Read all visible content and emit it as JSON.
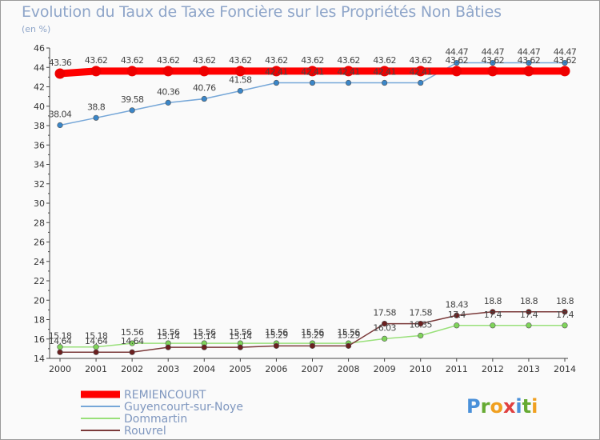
{
  "chart_data": {
    "type": "line",
    "title": "Evolution du Taux de Taxe Foncière sur les Propriétés Non Bâties",
    "subtitle": "(en %)",
    "x": [
      "2000",
      "2001",
      "2002",
      "2003",
      "2004",
      "2005",
      "2006",
      "2007",
      "2008",
      "2009",
      "2010",
      "2011",
      "2012",
      "2013",
      "2014"
    ],
    "ylim": [
      14,
      46
    ],
    "ytick_step": 2,
    "grid": false,
    "legend_position": "bottom-left",
    "series": [
      {
        "name": "REMIENCOURT",
        "color": "#ff0000",
        "values": [
          43.36,
          43.62,
          43.62,
          43.62,
          43.62,
          43.62,
          43.62,
          43.62,
          43.62,
          43.62,
          43.62,
          43.62,
          43.62,
          43.62,
          43.62
        ],
        "labels": [
          "43.36",
          "43.62",
          "43.62",
          "43.62",
          "43.62",
          "43.62",
          "43.62",
          "43.62",
          "43.62",
          "43.62",
          "43.62",
          "43.62",
          "43.62",
          "43.62",
          "43.62"
        ]
      },
      {
        "name": "Guyencourt-sur-Noye",
        "color": "#76a7d8",
        "values": [
          38.04,
          38.8,
          39.58,
          40.36,
          40.76,
          41.58,
          42.41,
          42.41,
          42.41,
          42.41,
          42.41,
          44.47,
          44.47,
          44.47,
          44.47
        ],
        "labels": [
          "38.04",
          "38.8",
          "39.58",
          "40.36",
          "40.76",
          "41.58",
          "42.41",
          "42.41",
          "42.41",
          "42.41",
          "42.41",
          "44.47",
          "44.47",
          "44.47",
          "44.47"
        ]
      },
      {
        "name": "Dommartin",
        "color": "#99e07a",
        "values": [
          15.18,
          15.18,
          15.56,
          15.56,
          15.56,
          15.56,
          15.56,
          15.56,
          15.56,
          16.03,
          16.35,
          17.4,
          17.4,
          17.4,
          17.4
        ],
        "labels": [
          "15.18",
          "15.18",
          "15.56",
          "15.56",
          "15.56",
          "15.56",
          "15.56",
          "15.56",
          "15.56",
          "16.03",
          "16.35",
          "17.4",
          "17.4",
          "17.4",
          "17.4"
        ]
      },
      {
        "name": "Rouvrel",
        "color": "#7b3a3a",
        "values": [
          14.64,
          14.64,
          14.64,
          15.14,
          15.14,
          15.14,
          15.29,
          15.29,
          15.29,
          17.58,
          17.58,
          18.43,
          18.8,
          18.8,
          18.8
        ],
        "labels": [
          "14.64",
          "14.64",
          "14.64",
          "15.14",
          "15.14",
          "15.14",
          "15.29",
          "15.29",
          "15.29",
          "17.58",
          "17.58",
          "18.43",
          "18.8",
          "18.8",
          "18.8"
        ]
      }
    ]
  },
  "logo": {
    "text": "Proxiti"
  }
}
